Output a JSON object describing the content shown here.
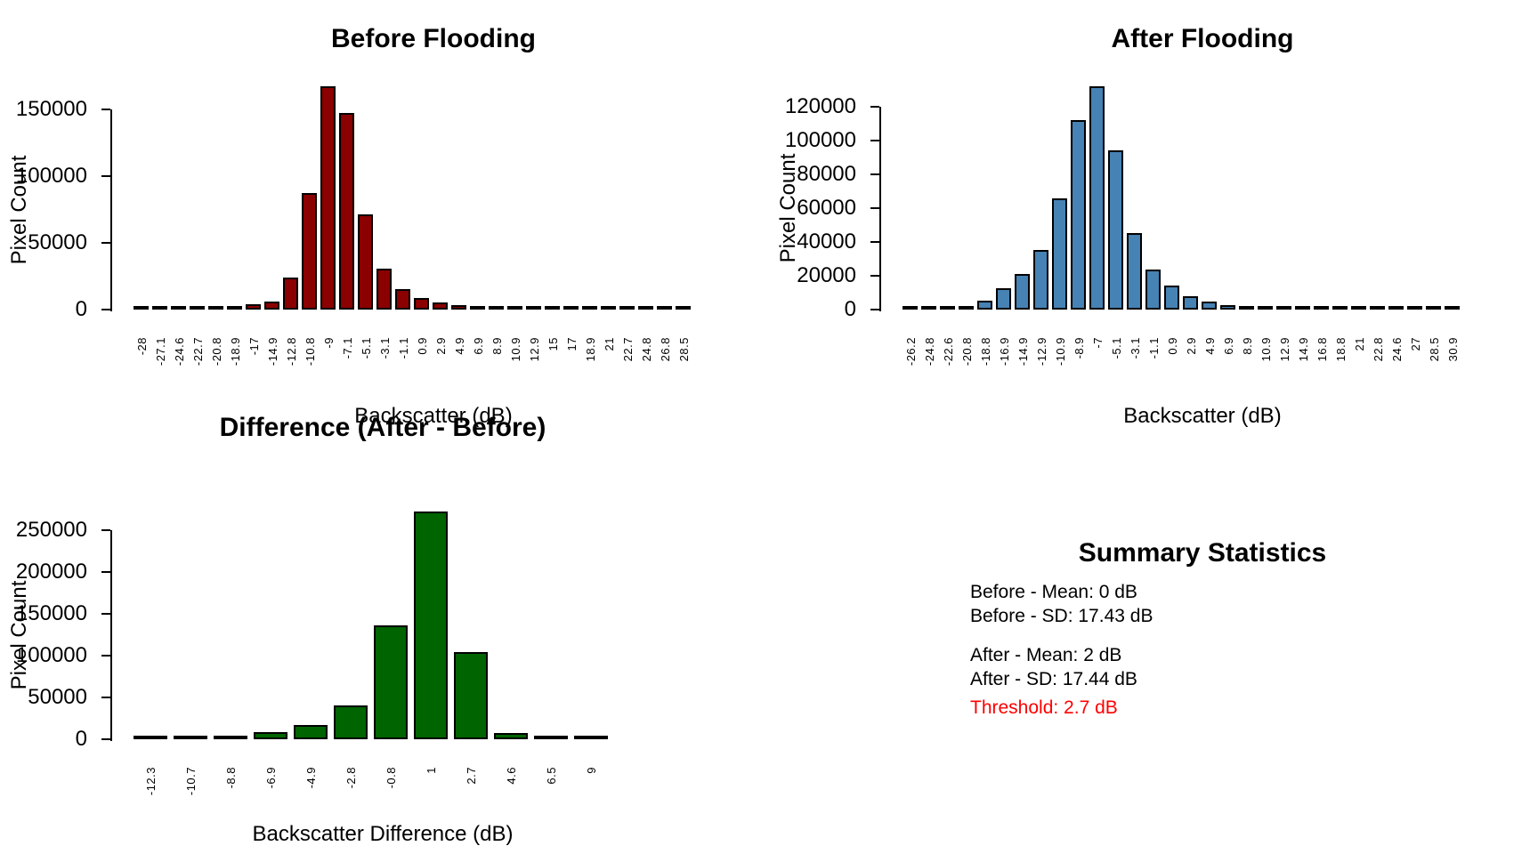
{
  "figure": {
    "background": "#ffffff",
    "text_color": "#000000"
  },
  "chart_data": [
    {
      "type": "bar",
      "title": "Before Flooding",
      "xlabel": "Backscatter (dB)",
      "ylabel": "Pixel Count",
      "bar_color": "#8B0000",
      "grid": false,
      "ylim": [
        0,
        167000
      ],
      "yticks": [
        0,
        50000,
        100000,
        150000
      ],
      "categories": [
        "-28",
        "-27.1",
        "-24.6",
        "-22.7",
        "-20.8",
        "-18.9",
        "-17",
        "-14.9",
        "-12.8",
        "-10.8",
        "-9",
        "-7.1",
        "-5.1",
        "-3.1",
        "-1.1",
        "0.9",
        "2.9",
        "4.9",
        "6.9",
        "8.9",
        "10.9",
        "12.9",
        "15",
        "17",
        "18.9",
        "21",
        "22.7",
        "24.8",
        "26.8",
        "28.5"
      ],
      "values": [
        300,
        300,
        300,
        500,
        1400,
        2800,
        3900,
        5800,
        24000,
        87000,
        167000,
        147500,
        71500,
        30500,
        15000,
        8500,
        5000,
        3000,
        1700,
        900,
        500,
        400,
        300,
        300,
        300,
        300,
        300,
        300,
        300,
        300
      ]
    },
    {
      "type": "bar",
      "title": "After Flooding",
      "xlabel": "Backscatter (dB)",
      "ylabel": "Pixel Count",
      "bar_color": "#4682B4",
      "grid": false,
      "ylim": [
        0,
        132000
      ],
      "yticks": [
        0,
        20000,
        40000,
        60000,
        80000,
        100000,
        120000
      ],
      "categories": [
        "-26.2",
        "-24.8",
        "-22.6",
        "-20.8",
        "-18.8",
        "-16.9",
        "-14.9",
        "-12.9",
        "-10.9",
        "-8.9",
        "-7",
        "-5.1",
        "-3.1",
        "-1.1",
        "0.9",
        "2.9",
        "4.9",
        "6.9",
        "8.9",
        "10.9",
        "12.9",
        "14.9",
        "16.8",
        "18.8",
        "21",
        "22.8",
        "24.6",
        "27",
        "28.5",
        "30.9"
      ],
      "values": [
        200,
        200,
        300,
        1000,
        5500,
        12500,
        21000,
        35500,
        66000,
        112000,
        132000,
        94000,
        45000,
        23500,
        14000,
        8000,
        4500,
        2500,
        1500,
        800,
        500,
        400,
        300,
        300,
        200,
        200,
        200,
        200,
        200,
        200
      ]
    },
    {
      "type": "bar",
      "title": "Difference (After - Before)",
      "xlabel": "Backscatter Difference (dB)",
      "ylabel": "Pixel Count",
      "bar_color": "#006400",
      "grid": false,
      "ylim": [
        0,
        272000
      ],
      "yticks": [
        0,
        50000,
        100000,
        150000,
        200000,
        250000
      ],
      "categories": [
        "-12.3",
        "-10.7",
        "-8.8",
        "-6.9",
        "-4.9",
        "-2.8",
        "-0.8",
        "1",
        "2.7",
        "4.6",
        "6.5",
        "9"
      ],
      "values": [
        200,
        600,
        2500,
        8000,
        17000,
        40000,
        136000,
        272000,
        104000,
        7000,
        600,
        200
      ]
    }
  ],
  "summary": {
    "title": "Summary Statistics",
    "before_mean": "Before - Mean: 0 dB",
    "before_sd": "Before - SD: 17.43 dB",
    "after_mean": "After - Mean: 2 dB",
    "after_sd": "After - SD: 17.44 dB",
    "threshold": "Threshold: 2.7 dB",
    "threshold_color": "#FF0000"
  }
}
